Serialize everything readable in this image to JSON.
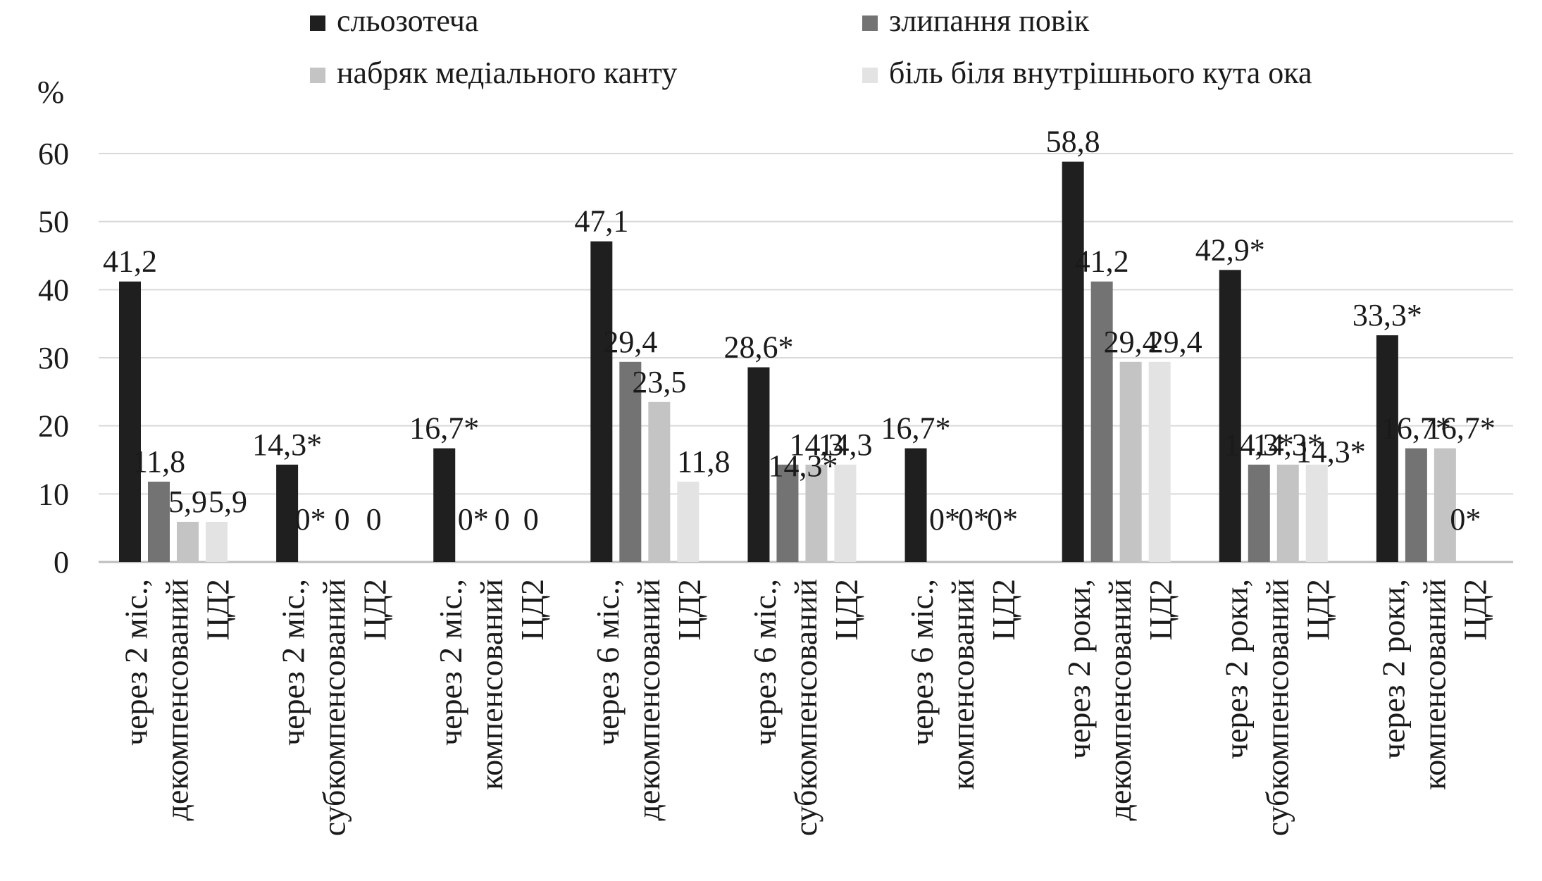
{
  "chart_data": {
    "type": "bar",
    "title": "",
    "xlabel": "",
    "ylabel": "%",
    "ylim": [
      0,
      60
    ],
    "y_ticks": [
      "0",
      "10",
      "20",
      "30",
      "40",
      "50",
      "60"
    ],
    "grid": true,
    "legend_position": "top",
    "categories": [
      [
        "через 2 міс.,",
        "декомпенсований",
        "ЦД2"
      ],
      [
        "через 2 міс.,",
        "субкомпенсований",
        "ЦД2"
      ],
      [
        "через 2 міс.,",
        "компенсований",
        "ЦД2"
      ],
      [
        "через 6 міс.,",
        "декомпенсований",
        "ЦД2"
      ],
      [
        "через 6 міс.,",
        "субкомпенсований",
        "ЦД2"
      ],
      [
        "через 6 міс.,",
        "компенсований",
        "ЦД2"
      ],
      [
        "через 2 роки,",
        "декомпенсований",
        "ЦД2"
      ],
      [
        "через 2 роки,",
        "субкомпенсований",
        "ЦД2"
      ],
      [
        "через 2 роки,",
        "компенсований",
        "ЦД2"
      ]
    ],
    "series": [
      {
        "name": "сльозотеча",
        "color": "#1f1f1f",
        "values": [
          41.2,
          14.3,
          16.7,
          47.1,
          28.6,
          16.7,
          58.8,
          42.9,
          33.3
        ],
        "labels": [
          "41,2",
          "14,3*",
          "16,7*",
          "47,1",
          "28,6*",
          "16,7*",
          "58,8",
          "42,9*",
          "33,3*"
        ]
      },
      {
        "name": "злипання повік",
        "color": "#737373",
        "values": [
          11.8,
          0,
          0,
          29.4,
          14.3,
          0,
          41.2,
          14.3,
          16.7
        ],
        "labels": [
          "11,8",
          "0*",
          "0*",
          "29,4",
          "14,3*",
          "0*",
          "41,2",
          "14,3*",
          "16,7*"
        ]
      },
      {
        "name": "набряк медіального канту",
        "color": "#c4c4c4",
        "values": [
          5.9,
          0,
          0,
          23.5,
          14.3,
          0,
          29.4,
          14.3,
          16.7
        ],
        "labels": [
          "5,9",
          "0",
          "0",
          "23,5",
          "14,3",
          "0*",
          "29,4",
          "14,3*",
          "16,7*"
        ]
      },
      {
        "name": "біль біля внутрішнього кута ока",
        "color": "#e3e3e3",
        "values": [
          5.9,
          0,
          0,
          11.8,
          14.3,
          0,
          29.4,
          14.3,
          0
        ],
        "labels": [
          "5,9",
          "0",
          "0",
          "11,8",
          "14,3",
          "0*",
          "29,4",
          "14,3*",
          "0*"
        ]
      }
    ]
  }
}
